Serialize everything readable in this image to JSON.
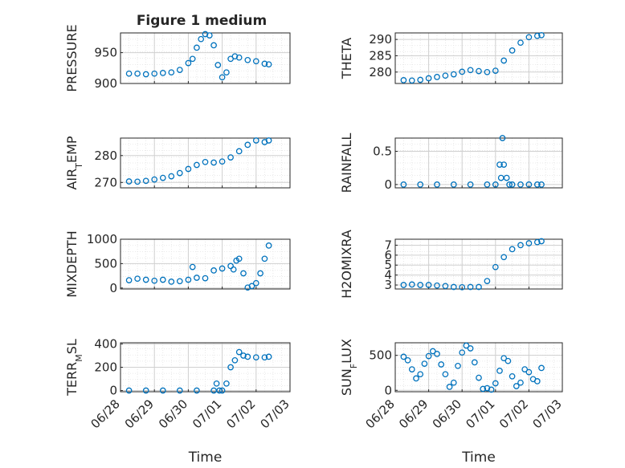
{
  "figure": {
    "title": "Figure 1 medium",
    "marker_color": "#0072bd"
  },
  "chart_data": [
    {
      "type": "scatter",
      "panel": "left-1",
      "ylabel": "PRESSURE",
      "ylim": [
        900,
        982
      ],
      "yticks": [
        900,
        950
      ],
      "xlabel": "",
      "xticks": [],
      "grid": true,
      "x": [
        "06/28 06:00",
        "06/28 12:00",
        "06/28 18:00",
        "06/29 00:00",
        "06/29 06:00",
        "06/29 12:00",
        "06/29 18:00",
        "06/30 00:00",
        "06/30 03:00",
        "06/30 06:00",
        "06/30 09:00",
        "06/30 12:00",
        "06/30 15:00",
        "06/30 18:00",
        "06/30 21:00",
        "07/01 00:00",
        "07/01 03:00",
        "07/01 06:00",
        "07/01 09:00",
        "07/01 12:00",
        "07/01 18:00",
        "07/02 00:00",
        "07/02 06:00",
        "07/02 09:00"
      ],
      "y": [
        916,
        916,
        915,
        916,
        917,
        918,
        922,
        933,
        940,
        958,
        972,
        980,
        978,
        962,
        930,
        910,
        918,
        940,
        944,
        942,
        938,
        936,
        932,
        931
      ]
    },
    {
      "type": "scatter",
      "panel": "right-1",
      "ylabel": "THETA",
      "ylim": [
        276.5,
        292
      ],
      "yticks": [
        280,
        285,
        290
      ],
      "xlabel": "",
      "xticks": [],
      "grid": true,
      "x": [
        "06/28 06:00",
        "06/28 12:00",
        "06/28 18:00",
        "06/29 00:00",
        "06/29 06:00",
        "06/29 12:00",
        "06/29 18:00",
        "06/30 00:00",
        "06/30 06:00",
        "06/30 12:00",
        "06/30 18:00",
        "07/01 00:00",
        "07/01 06:00",
        "07/01 12:00",
        "07/01 18:00",
        "07/02 00:00",
        "07/02 06:00",
        "07/02 09:00"
      ],
      "y": [
        277.5,
        277.4,
        277.6,
        278.1,
        278.5,
        278.9,
        279.3,
        280.1,
        280.6,
        280.3,
        280.0,
        280.4,
        283.5,
        286.6,
        289.0,
        290.7,
        291.1,
        291.3
      ]
    },
    {
      "type": "scatter",
      "panel": "left-2",
      "ylabel": "AIR_TEMP",
      "ylim": [
        268,
        286.5
      ],
      "yticks": [
        270,
        280
      ],
      "xlabel": "",
      "xticks": [],
      "grid": true,
      "x": [
        "06/28 06:00",
        "06/28 12:00",
        "06/28 18:00",
        "06/29 00:00",
        "06/29 06:00",
        "06/29 12:00",
        "06/29 18:00",
        "06/30 00:00",
        "06/30 06:00",
        "06/30 12:00",
        "06/30 18:00",
        "07/01 00:00",
        "07/01 06:00",
        "07/01 12:00",
        "07/01 18:00",
        "07/02 00:00",
        "07/02 06:00",
        "07/02 09:00"
      ],
      "y": [
        270.4,
        270.3,
        270.6,
        271.1,
        271.7,
        272.3,
        273.5,
        275.0,
        276.5,
        277.6,
        277.4,
        277.8,
        279.3,
        281.6,
        284.0,
        285.6,
        285.0,
        285.6
      ]
    },
    {
      "type": "scatter",
      "panel": "right-2",
      "ylabel": "RAINFALL",
      "ylim": [
        -0.05,
        0.7
      ],
      "yticks": [
        0,
        0.5
      ],
      "xlabel": "",
      "xticks": [],
      "grid": true,
      "x": [
        "06/28 06:00",
        "06/28 18:00",
        "06/29 06:00",
        "06/29 18:00",
        "06/30 06:00",
        "06/30 18:00",
        "07/01 00:00",
        "07/01 03:00",
        "07/01 04:00",
        "07/01 05:00",
        "07/01 06:00",
        "07/01 08:00",
        "07/01 10:00",
        "07/01 12:00",
        "07/01 18:00",
        "07/02 00:00",
        "07/02 06:00",
        "07/02 09:00"
      ],
      "y": [
        0,
        0,
        0,
        0,
        0,
        0,
        0,
        0.3,
        0.1,
        0.7,
        0.3,
        0.1,
        0,
        0,
        0,
        0,
        0,
        0
      ]
    },
    {
      "type": "scatter",
      "panel": "left-3",
      "ylabel": "MIXDEPTH",
      "ylim": [
        -20,
        1000
      ],
      "yticks": [
        0,
        500,
        1000
      ],
      "xlabel": "",
      "xticks": [],
      "grid": true,
      "x": [
        "06/28 06:00",
        "06/28 12:00",
        "06/28 18:00",
        "06/29 00:00",
        "06/29 06:00",
        "06/29 12:00",
        "06/29 18:00",
        "06/30 00:00",
        "06/30 03:00",
        "06/30 06:00",
        "06/30 12:00",
        "06/30 18:00",
        "07/01 00:00",
        "07/01 06:00",
        "07/01 08:00",
        "07/01 10:00",
        "07/01 12:00",
        "07/01 15:00",
        "07/01 18:00",
        "07/01 21:00",
        "07/02 00:00",
        "07/02 03:00",
        "07/02 06:00",
        "07/02 09:00"
      ],
      "y": [
        160,
        190,
        170,
        150,
        170,
        130,
        140,
        170,
        430,
        210,
        200,
        360,
        400,
        450,
        380,
        560,
        600,
        300,
        10,
        40,
        100,
        300,
        600,
        870
      ]
    },
    {
      "type": "scatter",
      "panel": "right-3",
      "ylabel": "H2OMIXRA",
      "ylim": [
        2.6,
        7.6
      ],
      "yticks": [
        3,
        4,
        5,
        6,
        7
      ],
      "xlabel": "",
      "xticks": [],
      "grid": true,
      "x": [
        "06/28 06:00",
        "06/28 12:00",
        "06/28 18:00",
        "06/29 00:00",
        "06/29 06:00",
        "06/29 12:00",
        "06/29 18:00",
        "06/30 00:00",
        "06/30 06:00",
        "06/30 12:00",
        "06/30 18:00",
        "07/01 00:00",
        "07/01 06:00",
        "07/01 12:00",
        "07/01 18:00",
        "07/02 00:00",
        "07/02 06:00",
        "07/02 09:00"
      ],
      "y": [
        3.0,
        3.05,
        3.0,
        3.0,
        2.95,
        2.9,
        2.8,
        2.78,
        2.8,
        2.8,
        3.4,
        4.8,
        5.8,
        6.6,
        7.0,
        7.2,
        7.3,
        7.4
      ]
    },
    {
      "type": "scatter",
      "panel": "left-4",
      "ylabel": "TERR_MSL",
      "ylim": [
        -10,
        410
      ],
      "yticks": [
        0,
        200,
        400
      ],
      "xlabel": "Time",
      "xticks": [
        "06/28",
        "06/29",
        "06/30",
        "07/01",
        "07/02",
        "07/03"
      ],
      "grid": true,
      "x": [
        "06/28 06:00",
        "06/28 18:00",
        "06/29 06:00",
        "06/29 18:00",
        "06/30 06:00",
        "06/30 18:00",
        "06/30 20:00",
        "06/30 22:00",
        "07/01 00:00",
        "07/01 03:00",
        "07/01 06:00",
        "07/01 09:00",
        "07/01 12:00",
        "07/01 15:00",
        "07/01 18:00",
        "07/02 00:00",
        "07/02 06:00",
        "07/02 09:00"
      ],
      "y": [
        0,
        0,
        0,
        0,
        0,
        0,
        60,
        0,
        0,
        60,
        200,
        260,
        330,
        300,
        290,
        285,
        285,
        290
      ]
    },
    {
      "type": "scatter",
      "panel": "right-4",
      "ylabel": "SUN_FLUX",
      "ylim": [
        -20,
        680
      ],
      "yticks": [
        0,
        500
      ],
      "xlabel": "Time",
      "xticks": [
        "06/28",
        "06/29",
        "06/30",
        "07/01",
        "07/02",
        "07/03"
      ],
      "grid": true,
      "x": [
        "06/28 06:00",
        "06/28 09:00",
        "06/28 12:00",
        "06/28 15:00",
        "06/28 18:00",
        "06/28 21:00",
        "06/29 00:00",
        "06/29 03:00",
        "06/29 06:00",
        "06/29 09:00",
        "06/29 12:00",
        "06/29 15:00",
        "06/29 18:00",
        "06/29 21:00",
        "06/30 00:00",
        "06/30 03:00",
        "06/30 06:00",
        "06/30 09:00",
        "06/30 12:00",
        "06/30 15:00",
        "06/30 18:00",
        "06/30 21:00",
        "07/01 00:00",
        "07/01 03:00",
        "07/01 06:00",
        "07/01 09:00",
        "07/01 12:00",
        "07/01 15:00",
        "07/01 18:00",
        "07/01 21:00",
        "07/02 00:00",
        "07/02 03:00",
        "07/02 06:00",
        "07/02 09:00"
      ],
      "y": [
        480,
        430,
        300,
        170,
        230,
        380,
        490,
        560,
        520,
        370,
        230,
        50,
        110,
        350,
        540,
        640,
        600,
        400,
        180,
        20,
        30,
        10,
        100,
        280,
        460,
        420,
        200,
        60,
        110,
        300,
        260,
        160,
        130,
        320
      ]
    }
  ]
}
